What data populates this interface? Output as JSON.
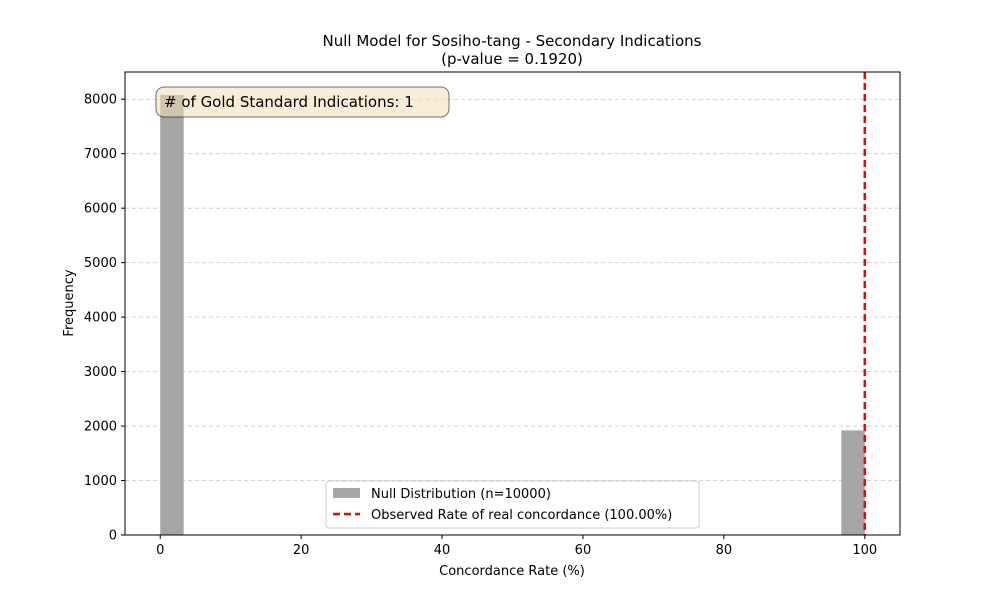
{
  "chart_data": {
    "type": "bar",
    "title": "Null Model for Sosiho-tang - Secondary Indications",
    "subtitle": "(p-value = 0.1920)",
    "xlabel": "Concordance Rate (%)",
    "ylabel": "Frequency",
    "xlim": [
      -5,
      105
    ],
    "ylim": [
      0,
      8500
    ],
    "xticks": [
      0,
      20,
      40,
      60,
      80,
      100
    ],
    "yticks": [
      0,
      1000,
      2000,
      3000,
      4000,
      5000,
      6000,
      7000,
      8000
    ],
    "grid": "horizontal dashed",
    "legend_position": "bottom-center",
    "series": [
      {
        "name": "Null Distribution (n=10000)",
        "kind": "histogram",
        "color": "#a6a6a6",
        "bins": [
          {
            "x0": 0,
            "x1": 3.33,
            "count": 8080
          },
          {
            "x0": 96.67,
            "x1": 100,
            "count": 1920
          }
        ]
      },
      {
        "name": "Observed Rate of real concordance (100.00%)",
        "kind": "vline",
        "color": "#ff0000",
        "x": 100
      }
    ],
    "annotation": "# of Gold Standard Indications: 1"
  }
}
